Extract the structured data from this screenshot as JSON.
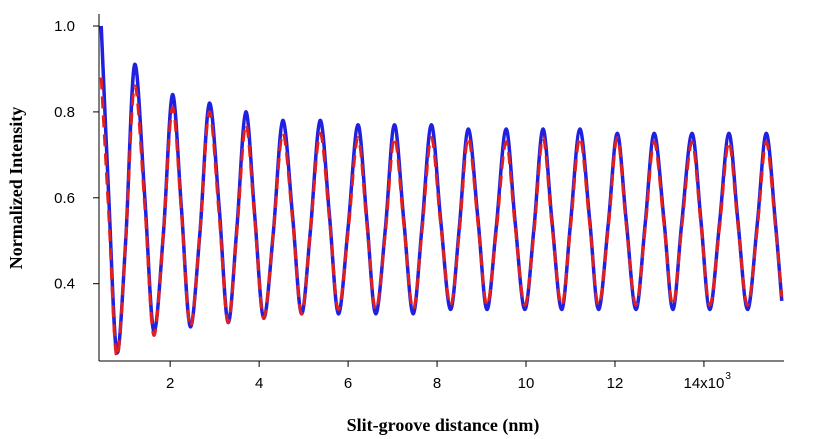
{
  "chart_data": {
    "type": "line",
    "xlabel": "Slit-groove distance (nm)",
    "ylabel": "Normalized Intensity",
    "xlim": [
      400,
      15800
    ],
    "ylim": [
      0.22,
      1.0
    ],
    "x_ticks": [
      2000,
      4000,
      6000,
      8000,
      10000,
      12000,
      14000
    ],
    "x_tick_labels": [
      "2",
      "4",
      "6",
      "8",
      "10",
      "12",
      "14x10"
    ],
    "x_tick_exponent": "3",
    "y_ticks": [
      0.4,
      0.6,
      0.8,
      1.0
    ],
    "y_tick_labels": [
      "0.4",
      "0.6",
      "0.8",
      "1.0"
    ],
    "grid": false,
    "series": [
      {
        "color": "#2020e0",
        "style": "solid",
        "x": [
          450,
          620,
          800,
          1000,
          1200,
          1430,
          1630,
          1850,
          2050,
          2250,
          2450,
          2670,
          2880,
          3100,
          3300,
          3500,
          3700,
          3900,
          4100,
          4320,
          4530,
          4750,
          4950,
          5150,
          5370,
          5580,
          5780,
          6000,
          6220,
          6420,
          6620,
          6840,
          7040,
          7250,
          7460,
          7660,
          7870,
          8080,
          8300,
          8500,
          8700,
          8920,
          9120,
          9330,
          9550,
          9750,
          9970,
          10180,
          10380,
          10580,
          10800,
          11000,
          11210,
          11430,
          11630,
          11850,
          12050,
          12250,
          12470,
          12680,
          12880,
          13100,
          13300,
          13500,
          13730,
          13930,
          14130,
          14350,
          14560,
          14760,
          14980,
          15200,
          15400,
          15600,
          15750
        ],
        "y": [
          1.0,
          0.6,
          0.24,
          0.5,
          0.91,
          0.6,
          0.29,
          0.52,
          0.84,
          0.58,
          0.3,
          0.52,
          0.82,
          0.58,
          0.31,
          0.53,
          0.8,
          0.56,
          0.32,
          0.52,
          0.78,
          0.56,
          0.33,
          0.52,
          0.78,
          0.56,
          0.33,
          0.53,
          0.77,
          0.55,
          0.33,
          0.53,
          0.77,
          0.55,
          0.33,
          0.53,
          0.77,
          0.55,
          0.34,
          0.53,
          0.76,
          0.55,
          0.34,
          0.53,
          0.76,
          0.55,
          0.34,
          0.53,
          0.76,
          0.55,
          0.34,
          0.54,
          0.76,
          0.55,
          0.34,
          0.54,
          0.75,
          0.55,
          0.34,
          0.54,
          0.75,
          0.55,
          0.34,
          0.54,
          0.75,
          0.55,
          0.34,
          0.54,
          0.75,
          0.55,
          0.34,
          0.54,
          0.75,
          0.55,
          0.36
        ]
      },
      {
        "color": "#e02020",
        "style": "dashed",
        "x": [
          450,
          620,
          800,
          1000,
          1200,
          1430,
          1630,
          1850,
          2050,
          2250,
          2450,
          2670,
          2880,
          3100,
          3300,
          3500,
          3700,
          3900,
          4100,
          4320,
          4530,
          4750,
          4950,
          5150,
          5370,
          5580,
          5780,
          6000,
          6220,
          6420,
          6620,
          6840,
          7040,
          7250,
          7460,
          7660,
          7870,
          8080,
          8300,
          8500,
          8700,
          8920,
          9120,
          9330,
          9550,
          9750,
          9970,
          10180,
          10380,
          10580,
          10800,
          11000,
          11210,
          11430,
          11630,
          11850,
          12050,
          12250,
          12470,
          12680,
          12880,
          13100,
          13300,
          13500,
          13730,
          13930,
          14130,
          14350,
          14560,
          14760,
          14980,
          15200,
          15400,
          15600,
          15750
        ],
        "y": [
          0.88,
          0.56,
          0.23,
          0.5,
          0.86,
          0.58,
          0.28,
          0.52,
          0.81,
          0.57,
          0.3,
          0.52,
          0.8,
          0.56,
          0.31,
          0.52,
          0.77,
          0.55,
          0.32,
          0.52,
          0.75,
          0.55,
          0.33,
          0.52,
          0.75,
          0.55,
          0.34,
          0.52,
          0.74,
          0.54,
          0.34,
          0.52,
          0.74,
          0.54,
          0.34,
          0.52,
          0.74,
          0.54,
          0.35,
          0.52,
          0.74,
          0.54,
          0.35,
          0.52,
          0.73,
          0.54,
          0.35,
          0.52,
          0.74,
          0.54,
          0.35,
          0.53,
          0.74,
          0.54,
          0.35,
          0.53,
          0.74,
          0.54,
          0.35,
          0.53,
          0.73,
          0.54,
          0.35,
          0.53,
          0.73,
          0.54,
          0.35,
          0.53,
          0.73,
          0.54,
          0.35,
          0.53,
          0.73,
          0.54,
          0.37
        ]
      }
    ]
  }
}
